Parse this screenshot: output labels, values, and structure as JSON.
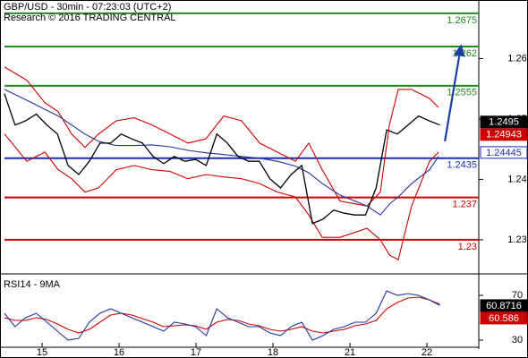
{
  "chart_data": [
    {
      "type": "line",
      "title": "GBP/USD - 30min - 07:23:03 (UTC+2)",
      "subtitle": "Research © 2016 TRADING CENTRAL",
      "xlim": [
        0.453,
        6.674
      ],
      "ylim": [
        1.2245,
        1.2697
      ],
      "yticks": [
        1.26,
        1.25,
        1.24,
        1.23
      ],
      "x": [
        0.51,
        0.648,
        0.786,
        0.924,
        1.062,
        1.2,
        1.338,
        1.476,
        1.614,
        1.752,
        1.89,
        2.028,
        2.166,
        2.304,
        2.442,
        2.58,
        2.718,
        2.856,
        2.994,
        3.132,
        3.27,
        3.408,
        3.546,
        3.684,
        3.822,
        3.96,
        4.098,
        4.236,
        4.374,
        4.512,
        4.65,
        4.788,
        4.926,
        5.064,
        5.202,
        5.34,
        5.478,
        5.616,
        5.754,
        5.892,
        6.03,
        6.168
      ],
      "series": [
        {
          "color": "#cc0000",
          "x": [
            0.512,
            0.802,
            1.035,
            1.209,
            1.384,
            1.558,
            1.733,
            1.965,
            2.198,
            2.43,
            2.663,
            2.895,
            3.128,
            3.36,
            3.593,
            3.826,
            4.058,
            4.291,
            4.465,
            4.64,
            4.872,
            5.221,
            5.395,
            5.512,
            5.628,
            5.802,
            6.035,
            6.151
          ],
          "values": [
            1.2586,
            1.2564,
            1.2527,
            1.2512,
            1.2475,
            1.2453,
            1.2475,
            1.2497,
            1.2502,
            1.249,
            1.2475,
            1.246,
            1.2467,
            1.2505,
            1.2497,
            1.246,
            1.2445,
            1.243,
            1.246,
            1.2416,
            1.2364,
            1.2356,
            1.2379,
            1.249,
            1.2549,
            1.2549,
            1.2534,
            1.2519
          ]
        },
        {
          "color": "#cc0000",
          "x": [
            0.512,
            0.802,
            1.035,
            1.209,
            1.384,
            1.558,
            1.733,
            1.965,
            2.198,
            2.43,
            2.663,
            2.895,
            3.128,
            3.36,
            3.593,
            3.826,
            4.058,
            4.291,
            4.465,
            4.64,
            4.872,
            5.221,
            5.395,
            5.512,
            5.628,
            5.802,
            6.035,
            6.151
          ],
          "values": [
            1.2475,
            1.243,
            1.2445,
            1.2416,
            1.2401,
            1.2379,
            1.2386,
            1.2416,
            1.2423,
            1.2416,
            1.2413,
            1.2401,
            1.2408,
            1.2404,
            1.2401,
            1.2393,
            1.2379,
            1.2371,
            1.2341,
            1.2304,
            1.2304,
            1.2319,
            1.23,
            1.2275,
            1.2267,
            1.2356,
            1.243,
            1.2445
          ]
        },
        {
          "color": "#2233a0",
          "x": [
            0.512,
            0.802,
            1.035,
            1.209,
            1.384,
            1.558,
            1.733,
            1.965,
            2.198,
            2.43,
            2.663,
            2.895,
            3.128,
            3.36,
            3.593,
            3.826,
            4.058,
            4.291,
            4.465,
            4.64,
            4.872,
            5.221,
            5.395,
            5.512,
            5.628,
            5.802,
            6.035,
            6.151
          ],
          "values": [
            1.2549,
            1.2531,
            1.2516,
            1.2505,
            1.249,
            1.2475,
            1.2463,
            1.2456,
            1.2456,
            1.2457,
            1.2454,
            1.2448,
            1.2444,
            1.2441,
            1.2438,
            1.2435,
            1.243,
            1.2422,
            1.2411,
            1.2393,
            1.2374,
            1.2356,
            1.2341,
            1.2359,
            1.2371,
            1.2393,
            1.2416,
            1.2438
          ]
        },
        {
          "color": "#000000",
          "values": [
            1.2542,
            1.249,
            1.2497,
            1.2508,
            1.249,
            1.2475,
            1.2423,
            1.2408,
            1.243,
            1.246,
            1.246,
            1.2475,
            1.2467,
            1.246,
            1.2438,
            1.2426,
            1.2438,
            1.243,
            1.2433,
            1.2423,
            1.2475,
            1.246,
            1.2438,
            1.243,
            1.243,
            1.2401,
            1.2386,
            1.2408,
            1.2423,
            1.2327,
            1.2334,
            1.2349,
            1.2344,
            1.2341,
            1.2341,
            1.2386,
            1.2482,
            1.2475,
            1.249,
            1.2505,
            1.2497,
            1.249
          ]
        }
      ],
      "levels": [
        {
          "value": 1.2675,
          "color": "#1e8c1e"
        },
        {
          "value": 1.262,
          "color": "#1e8c1e"
        },
        {
          "value": 1.2555,
          "color": "#1e8c1e"
        },
        {
          "value": 1.2435,
          "color": "#1a2fb0"
        },
        {
          "value": 1.237,
          "color": "#cc0000"
        },
        {
          "value": 1.23,
          "color": "#cc0000"
        }
      ],
      "price_labels": [
        {
          "value": 1.2495,
          "color": "#000000",
          "fill": true
        },
        {
          "value": 1.24943,
          "color": "#cc0000",
          "fill": true
        },
        {
          "value": 1.24445,
          "color": "#1a2fb0",
          "fill": false
        }
      ],
      "forecast": {
        "color": "#1a3fa0",
        "x": [
          6.233,
          6.442
        ],
        "values": [
          1.2463,
          1.262
        ]
      }
    },
    {
      "type": "line",
      "title": "RSI14 - 9MA",
      "xlim": [
        0.453,
        6.674
      ],
      "ylim": [
        22,
        84.4
      ],
      "yticks": [
        70,
        30
      ],
      "xticks": [
        {
          "value": 1,
          "label": "15"
        },
        {
          "value": 2,
          "label": "16"
        },
        {
          "value": 3,
          "label": "17"
        },
        {
          "value": 4,
          "label": "18"
        },
        {
          "value": 5,
          "label": "21"
        },
        {
          "value": 6,
          "label": "22"
        }
      ],
      "x": [
        0.51,
        0.648,
        0.786,
        0.924,
        1.062,
        1.2,
        1.338,
        1.476,
        1.614,
        1.752,
        1.89,
        2.028,
        2.166,
        2.304,
        2.442,
        2.58,
        2.718,
        2.856,
        2.994,
        3.132,
        3.27,
        3.408,
        3.546,
        3.684,
        3.822,
        3.96,
        4.098,
        4.236,
        4.374,
        4.512,
        4.65,
        4.788,
        4.926,
        5.064,
        5.202,
        5.34,
        5.478,
        5.616,
        5.754,
        5.892,
        6.03,
        6.168
      ],
      "series": [
        {
          "color": "#cc0000",
          "values": [
            50,
            47.6,
            47.6,
            50,
            48.4,
            44.4,
            39.6,
            36.4,
            39.6,
            46,
            52.4,
            54,
            52.4,
            49.2,
            46,
            42,
            42.8,
            43.6,
            42.8,
            39.6,
            46,
            48.4,
            47.6,
            44.4,
            42.8,
            39.6,
            38,
            39.6,
            42,
            38,
            36.4,
            38,
            39.6,
            42.8,
            44.4,
            47.6,
            58,
            63.6,
            67.6,
            68.4,
            66,
            62
          ]
        },
        {
          "color": "#2233a0",
          "values": [
            54,
            42,
            50,
            54,
            46,
            38,
            30,
            31.6,
            46,
            54,
            58,
            54,
            50,
            46,
            42,
            38,
            46,
            44.4,
            42,
            34,
            58,
            50,
            46,
            42,
            42,
            36.4,
            34,
            42,
            46,
            30,
            34,
            39.6,
            42,
            46,
            46,
            54,
            74,
            70,
            71.6,
            70,
            66,
            60.9
          ]
        }
      ],
      "price_labels": [
        {
          "value": 60.8716,
          "color": "#000000",
          "fill": true
        },
        {
          "value": 60.586,
          "color": "#cc0000",
          "fill": true
        }
      ]
    }
  ]
}
